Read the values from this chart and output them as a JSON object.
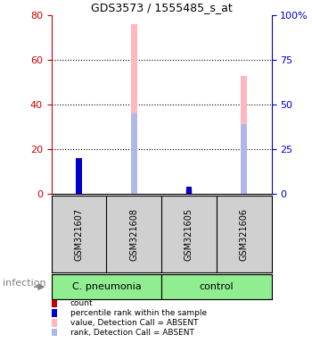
{
  "title": "GDS3573 / 1555485_s_at",
  "samples": [
    "GSM321607",
    "GSM321608",
    "GSM321605",
    "GSM321606"
  ],
  "ylim_left": [
    0,
    80
  ],
  "ylim_right": [
    0,
    100
  ],
  "yticks_left": [
    0,
    20,
    40,
    60,
    80
  ],
  "yticks_right": [
    0,
    25,
    50,
    75,
    100
  ],
  "left_axis_color": "#cc0000",
  "right_axis_color": "#0000cc",
  "absent_bar_values": [
    12,
    76,
    2,
    53
  ],
  "absent_rank_values": [
    null,
    45,
    null,
    39
  ],
  "count_values": [
    null,
    null,
    2,
    null
  ],
  "rank_values": [
    20,
    null,
    4,
    null
  ],
  "count_color": "#cc0000",
  "rank_color": "#0000cc",
  "absent_bar_color": "#ffb6c1",
  "absent_rank_color": "#b0b8e8",
  "legend_items": [
    {
      "label": "count",
      "color": "#cc0000"
    },
    {
      "label": "percentile rank within the sample",
      "color": "#0000cc"
    },
    {
      "label": "value, Detection Call = ABSENT",
      "color": "#ffb6c1"
    },
    {
      "label": "rank, Detection Call = ABSENT",
      "color": "#b0b8e8"
    }
  ],
  "group_label_1": "C. pneumonia",
  "group_label_2": "control",
  "group_color": "#90EE90",
  "sample_box_color": "#d0d0d0",
  "infection_label": "infection"
}
